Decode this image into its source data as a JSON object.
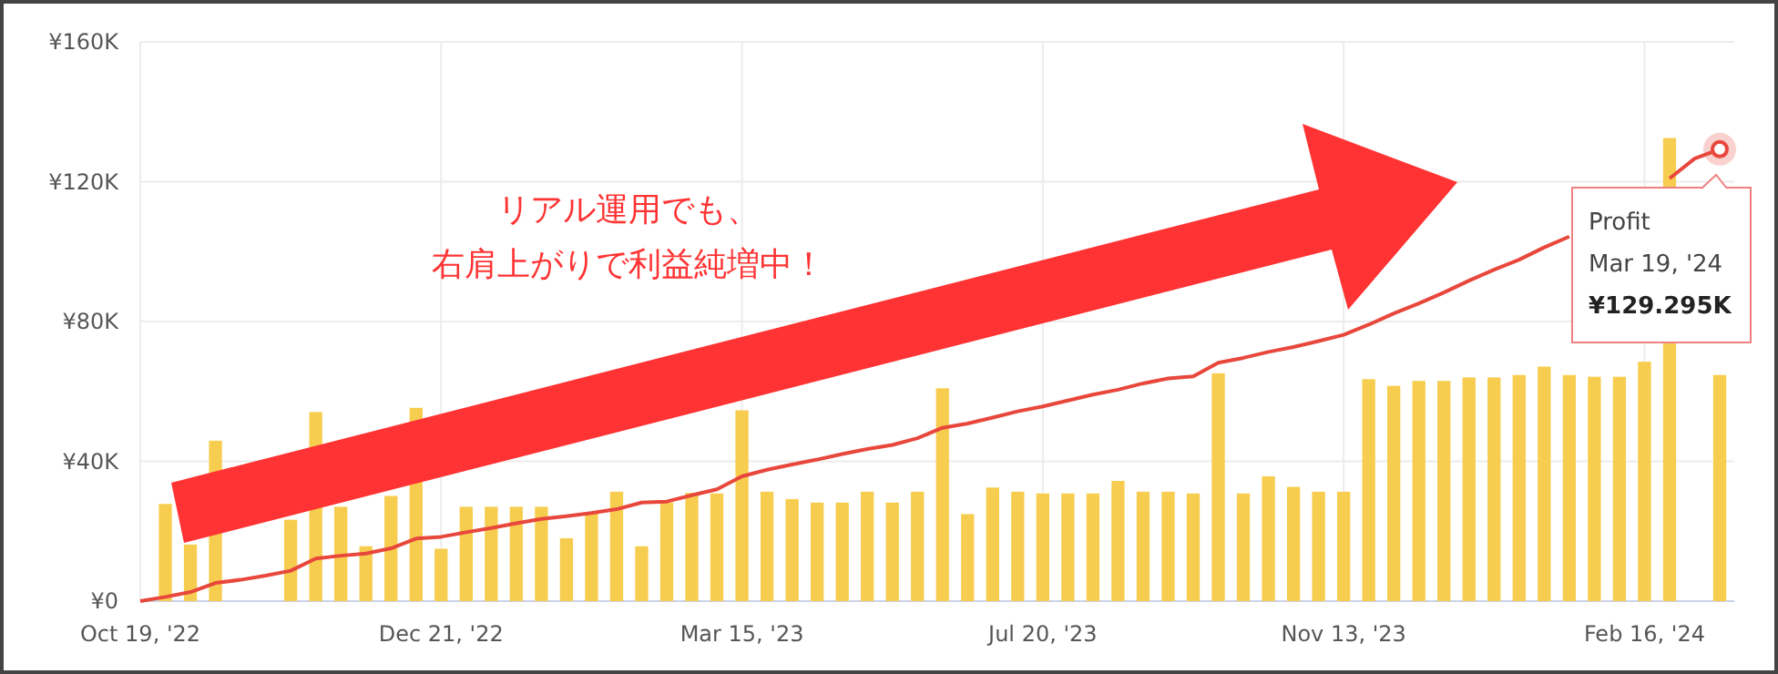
{
  "chart_data": {
    "type": "bar",
    "categories": [
      "Oct 19, '22",
      null,
      null,
      null,
      null,
      null,
      null,
      null,
      null,
      null,
      null,
      null,
      "Dec 21, '22",
      null,
      null,
      null,
      null,
      null,
      null,
      null,
      null,
      null,
      null,
      null,
      "Mar 15, '23",
      null,
      null,
      null,
      null,
      null,
      null,
      null,
      null,
      null,
      null,
      null,
      "Jul 20, '23",
      null,
      null,
      null,
      null,
      null,
      null,
      null,
      null,
      null,
      null,
      null,
      "Nov 13, '23",
      null,
      null,
      null,
      null,
      null,
      null,
      null,
      null,
      null,
      null,
      null,
      "Feb 16, '24",
      null,
      null,
      null
    ],
    "series": [
      {
        "color": "#f7cd4f",
        "values": [
          0,
          27.8,
          16.2,
          45.9,
          null,
          null,
          23.3,
          54.1,
          27.0,
          15.7,
          30.1,
          55.3,
          15.0,
          27.0,
          27.0,
          27.0,
          27.0,
          18,
          25.2,
          31.3,
          15.7,
          28.2,
          31.0,
          30.8,
          54.6,
          31.3,
          29.2,
          28.2,
          28.2,
          31.3,
          28.2,
          31.3,
          60.9,
          24.9,
          32.5,
          31.3,
          30.8,
          30.8,
          30.8,
          34.4,
          31.3,
          31.3,
          30.8,
          65.2,
          30.8,
          35.7,
          32.7,
          31.3,
          31.3,
          63.5,
          61.6,
          63.0,
          63.0,
          64.0,
          64.0,
          64.7,
          67.1,
          64.7,
          64.2,
          64.2,
          68.5,
          132.5,
          null,
          64.7
        ]
      },
      {
        "type": "line",
        "name": "Profit",
        "color": "#e8473c",
        "values": [
          0,
          1.2,
          2.6,
          5.2,
          6.1,
          7.3,
          8.7,
          12.2,
          13.0,
          13.6,
          15.1,
          17.9,
          18.4,
          19.7,
          20.9,
          22.3,
          23.5,
          24.3,
          25.2,
          26.3,
          28.2,
          28.5,
          30.3,
          32.0,
          35.7,
          37.6,
          39.1,
          40.5,
          42.1,
          43.5,
          44.7,
          46.6,
          49.6,
          50.8,
          52.5,
          54.3,
          55.7,
          57.4,
          59.1,
          60.5,
          62.3,
          63.7,
          64.3,
          68.2,
          69.6,
          71.3,
          72.7,
          74.4,
          76.2,
          79.1,
          82.3,
          85.2,
          88.3,
          91.7,
          94.8,
          97.7,
          101.2,
          104.3,
          null,
          null,
          null,
          120.9,
          126.6,
          129.295
        ]
      }
    ],
    "ylim": [
      0,
      160
    ],
    "yticks": [
      {
        "value": 0,
        "label": "¥0"
      },
      {
        "value": 40,
        "label": "¥40K"
      },
      {
        "value": 80,
        "label": "¥80K"
      },
      {
        "value": 120,
        "label": "¥120K"
      },
      {
        "value": 160,
        "label": "¥160K"
      }
    ],
    "grid": true,
    "legend": false,
    "annotations": [
      "リアル運用でも、",
      "右肩上がりで利益純増中！",
      "Mar 19, '24",
      "¥129.295K"
    ]
  }
}
